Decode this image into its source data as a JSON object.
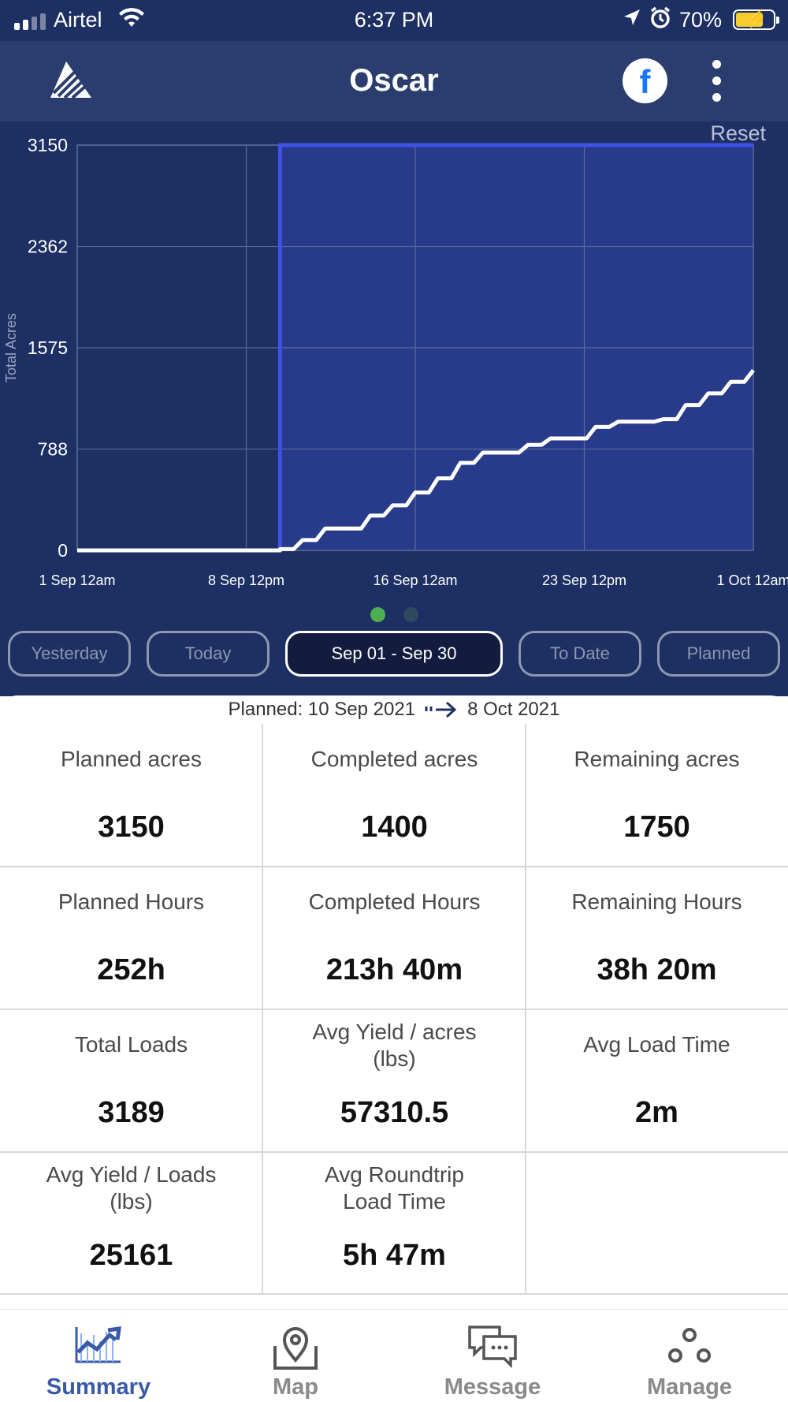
{
  "status_bar": {
    "carrier": "Airtel",
    "time": "6:37 PM",
    "battery": "70%",
    "battery_level": 0.7
  },
  "app_bar": {
    "title": "Oscar",
    "facebook_glyph": "f"
  },
  "chart": {
    "reset_label": "Reset",
    "y_label": "Total Acres",
    "y_ticks": [
      "3150",
      "2362",
      "1575",
      "788",
      "0"
    ],
    "x_ticks": [
      "1 Sep 12am",
      "8 Sep 12pm",
      "16 Sep 12am",
      "23 Sep 12pm",
      "1 Oct 12am"
    ],
    "colors": {
      "background": "#1d2f63",
      "plan_fill": "#283a8a",
      "plan_line": "#3f51e6",
      "actual_line": "#ffffff",
      "grid": "#5a6b9a"
    }
  },
  "chart_data": {
    "type": "line",
    "ylabel": "Total Acres",
    "xlabel": "",
    "ylim": [
      0,
      3150
    ],
    "xlim": [
      "2021-09-01",
      "2021-10-01"
    ],
    "y_ticks": [
      0,
      788,
      1575,
      2362,
      3150
    ],
    "x_tick_labels": [
      "1 Sep 12am",
      "8 Sep 12pm",
      "16 Sep 12am",
      "23 Sep 12pm",
      "1 Oct 12am"
    ],
    "series": [
      {
        "name": "",
        "style": "planned-area",
        "x": [
          "2021-09-01",
          "2021-09-10",
          "2021-09-10",
          "2021-10-01"
        ],
        "y": [
          0,
          0,
          3150,
          3150
        ]
      },
      {
        "name": "",
        "style": "actual",
        "x": [
          "2021-09-01",
          "2021-09-10",
          "2021-09-10",
          "2021-09-11",
          "2021-09-12",
          "2021-09-13",
          "2021-09-14",
          "2021-09-15",
          "2021-09-16",
          "2021-09-17",
          "2021-09-18",
          "2021-09-19",
          "2021-09-20",
          "2021-09-21",
          "2021-09-22",
          "2021-09-23",
          "2021-09-24",
          "2021-09-25",
          "2021-09-26",
          "2021-09-27",
          "2021-09-28",
          "2021-09-29",
          "2021-09-30",
          "2021-10-01"
        ],
        "y": [
          0,
          0,
          10,
          80,
          170,
          170,
          270,
          350,
          450,
          560,
          680,
          760,
          760,
          820,
          870,
          870,
          960,
          1000,
          1000,
          1020,
          1130,
          1220,
          1310,
          1400
        ]
      }
    ]
  },
  "page_dots": {
    "active_color": "#4caf50",
    "inactive_color": "#2f4a5e"
  },
  "range_tabs": [
    "Yesterday",
    "Today",
    "Sep 01 - Sep 30",
    "To Date",
    "Planned"
  ],
  "range_active_index": 2,
  "planned": {
    "prefix": "Planned: 10 Sep 2021",
    "end": "8 Oct 2021"
  },
  "stats": [
    {
      "label": "Planned acres",
      "value": "3150"
    },
    {
      "label": "Completed acres",
      "value": "1400"
    },
    {
      "label": "Remaining acres",
      "value": "1750"
    },
    {
      "label": "Planned Hours",
      "value": "252h"
    },
    {
      "label": "Completed Hours",
      "value": "213h 40m"
    },
    {
      "label": "Remaining Hours",
      "value": "38h 20m"
    },
    {
      "label": "Total Loads",
      "value": "3189"
    },
    {
      "label": "Avg Yield / acres\n(lbs)",
      "value": "57310.5"
    },
    {
      "label": "Avg Load Time",
      "value": "2m"
    },
    {
      "label": "Avg Yield / Loads\n(lbs)",
      "value": "25161"
    },
    {
      "label": "Avg Roundtrip\nLoad Time",
      "value": "5h 47m"
    }
  ],
  "tabbar": {
    "items": [
      {
        "label": "Summary",
        "icon": "summary-chart-icon"
      },
      {
        "label": "Map",
        "icon": "map-pin-icon"
      },
      {
        "label": "Message",
        "icon": "message-icon"
      },
      {
        "label": "Manage",
        "icon": "manage-icon"
      }
    ],
    "active_index": 0,
    "active_color": "#3a5aa8"
  }
}
